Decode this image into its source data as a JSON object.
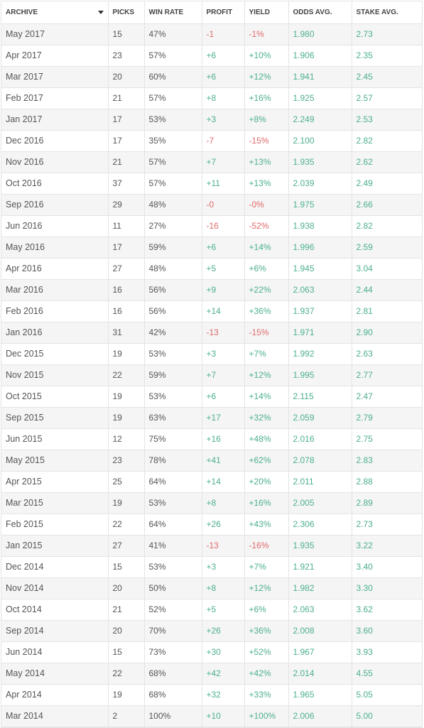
{
  "columns": {
    "archive": "ARCHIVE",
    "picks": "PICKS",
    "win_rate": "WIN RATE",
    "profit": "PROFIT",
    "yield": "YIELD",
    "odds_avg": "ODDS AVG.",
    "stake_avg": "STAKE AVG."
  },
  "colors": {
    "positive": "#4caf8e",
    "negative": "#e0696b",
    "zebra": "#f5f5f5"
  },
  "rows": [
    {
      "archive": "May 2017",
      "picks": "15",
      "win_rate": "47%",
      "profit": "-1",
      "yield": "-1%",
      "odds_avg": "1.980",
      "stake_avg": "2.73"
    },
    {
      "archive": "Apr 2017",
      "picks": "23",
      "win_rate": "57%",
      "profit": "+6",
      "yield": "+10%",
      "odds_avg": "1.906",
      "stake_avg": "2.35"
    },
    {
      "archive": "Mar 2017",
      "picks": "20",
      "win_rate": "60%",
      "profit": "+6",
      "yield": "+12%",
      "odds_avg": "1.941",
      "stake_avg": "2.45"
    },
    {
      "archive": "Feb 2017",
      "picks": "21",
      "win_rate": "57%",
      "profit": "+8",
      "yield": "+16%",
      "odds_avg": "1.925",
      "stake_avg": "2.57"
    },
    {
      "archive": "Jan 2017",
      "picks": "17",
      "win_rate": "53%",
      "profit": "+3",
      "yield": "+8%",
      "odds_avg": "2.249",
      "stake_avg": "2.53"
    },
    {
      "archive": "Dec 2016",
      "picks": "17",
      "win_rate": "35%",
      "profit": "-7",
      "yield": "-15%",
      "odds_avg": "2.100",
      "stake_avg": "2.82"
    },
    {
      "archive": "Nov 2016",
      "picks": "21",
      "win_rate": "57%",
      "profit": "+7",
      "yield": "+13%",
      "odds_avg": "1.935",
      "stake_avg": "2.62"
    },
    {
      "archive": "Oct 2016",
      "picks": "37",
      "win_rate": "57%",
      "profit": "+11",
      "yield": "+13%",
      "odds_avg": "2.039",
      "stake_avg": "2.49"
    },
    {
      "archive": "Sep 2016",
      "picks": "29",
      "win_rate": "48%",
      "profit": "-0",
      "yield": "-0%",
      "odds_avg": "1.975",
      "stake_avg": "2.66"
    },
    {
      "archive": "Jun 2016",
      "picks": "11",
      "win_rate": "27%",
      "profit": "-16",
      "yield": "-52%",
      "odds_avg": "1.938",
      "stake_avg": "2.82"
    },
    {
      "archive": "May 2016",
      "picks": "17",
      "win_rate": "59%",
      "profit": "+6",
      "yield": "+14%",
      "odds_avg": "1.996",
      "stake_avg": "2.59"
    },
    {
      "archive": "Apr 2016",
      "picks": "27",
      "win_rate": "48%",
      "profit": "+5",
      "yield": "+6%",
      "odds_avg": "1.945",
      "stake_avg": "3.04"
    },
    {
      "archive": "Mar 2016",
      "picks": "16",
      "win_rate": "56%",
      "profit": "+9",
      "yield": "+22%",
      "odds_avg": "2.063",
      "stake_avg": "2.44"
    },
    {
      "archive": "Feb 2016",
      "picks": "16",
      "win_rate": "56%",
      "profit": "+14",
      "yield": "+36%",
      "odds_avg": "1.937",
      "stake_avg": "2.81"
    },
    {
      "archive": "Jan 2016",
      "picks": "31",
      "win_rate": "42%",
      "profit": "-13",
      "yield": "-15%",
      "odds_avg": "1.971",
      "stake_avg": "2.90"
    },
    {
      "archive": "Dec 2015",
      "picks": "19",
      "win_rate": "53%",
      "profit": "+3",
      "yield": "+7%",
      "odds_avg": "1.992",
      "stake_avg": "2.63"
    },
    {
      "archive": "Nov 2015",
      "picks": "22",
      "win_rate": "59%",
      "profit": "+7",
      "yield": "+12%",
      "odds_avg": "1.995",
      "stake_avg": "2.77"
    },
    {
      "archive": "Oct 2015",
      "picks": "19",
      "win_rate": "53%",
      "profit": "+6",
      "yield": "+14%",
      "odds_avg": "2.115",
      "stake_avg": "2.47"
    },
    {
      "archive": "Sep 2015",
      "picks": "19",
      "win_rate": "63%",
      "profit": "+17",
      "yield": "+32%",
      "odds_avg": "2.059",
      "stake_avg": "2.79"
    },
    {
      "archive": "Jun 2015",
      "picks": "12",
      "win_rate": "75%",
      "profit": "+16",
      "yield": "+48%",
      "odds_avg": "2.016",
      "stake_avg": "2.75"
    },
    {
      "archive": "May 2015",
      "picks": "23",
      "win_rate": "78%",
      "profit": "+41",
      "yield": "+62%",
      "odds_avg": "2.078",
      "stake_avg": "2.83"
    },
    {
      "archive": "Apr 2015",
      "picks": "25",
      "win_rate": "64%",
      "profit": "+14",
      "yield": "+20%",
      "odds_avg": "2.011",
      "stake_avg": "2.88"
    },
    {
      "archive": "Mar 2015",
      "picks": "19",
      "win_rate": "53%",
      "profit": "+8",
      "yield": "+16%",
      "odds_avg": "2.005",
      "stake_avg": "2.89"
    },
    {
      "archive": "Feb 2015",
      "picks": "22",
      "win_rate": "64%",
      "profit": "+26",
      "yield": "+43%",
      "odds_avg": "2.306",
      "stake_avg": "2.73"
    },
    {
      "archive": "Jan 2015",
      "picks": "27",
      "win_rate": "41%",
      "profit": "-13",
      "yield": "-16%",
      "odds_avg": "1.935",
      "stake_avg": "3.22"
    },
    {
      "archive": "Dec 2014",
      "picks": "15",
      "win_rate": "53%",
      "profit": "+3",
      "yield": "+7%",
      "odds_avg": "1.921",
      "stake_avg": "3.40"
    },
    {
      "archive": "Nov 2014",
      "picks": "20",
      "win_rate": "50%",
      "profit": "+8",
      "yield": "+12%",
      "odds_avg": "1.982",
      "stake_avg": "3.30"
    },
    {
      "archive": "Oct 2014",
      "picks": "21",
      "win_rate": "52%",
      "profit": "+5",
      "yield": "+6%",
      "odds_avg": "2.063",
      "stake_avg": "3.62"
    },
    {
      "archive": "Sep 2014",
      "picks": "20",
      "win_rate": "70%",
      "profit": "+26",
      "yield": "+36%",
      "odds_avg": "2.008",
      "stake_avg": "3.60"
    },
    {
      "archive": "Jun 2014",
      "picks": "15",
      "win_rate": "73%",
      "profit": "+30",
      "yield": "+52%",
      "odds_avg": "1.967",
      "stake_avg": "3.93"
    },
    {
      "archive": "May 2014",
      "picks": "22",
      "win_rate": "68%",
      "profit": "+42",
      "yield": "+42%",
      "odds_avg": "2.014",
      "stake_avg": "4.55"
    },
    {
      "archive": "Apr 2014",
      "picks": "19",
      "win_rate": "68%",
      "profit": "+32",
      "yield": "+33%",
      "odds_avg": "1.965",
      "stake_avg": "5.05"
    },
    {
      "archive": "Mar 2014",
      "picks": "2",
      "win_rate": "100%",
      "profit": "+10",
      "yield": "+100%",
      "odds_avg": "2.006",
      "stake_avg": "5.00"
    }
  ]
}
